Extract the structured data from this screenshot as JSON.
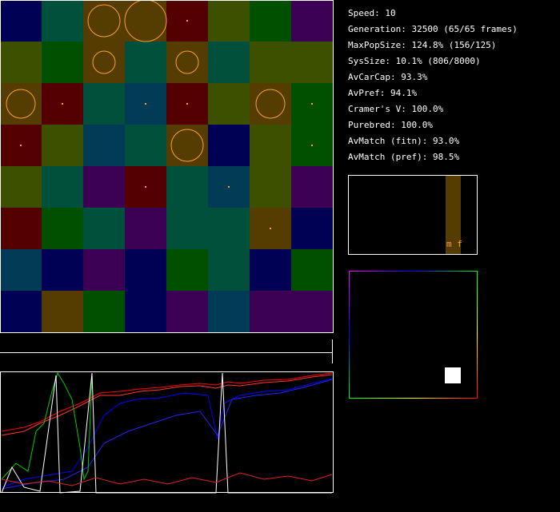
{
  "stats": [
    "Speed: 10",
    "Generation: 32500 (65/65 frames)",
    "MaxPopSize: 124.8% (156/125)",
    "SysSize: 10.1% (806/8000)",
    "AvCarCap: 93.3%",
    "AvPref: 94.1%",
    "Cramer's V: 100.0%",
    "Purebred: 100.0%",
    "AvMatch (fitn): 93.0%",
    "AvMatch (pref): 98.5%"
  ],
  "histogram_label": "m f"
}
